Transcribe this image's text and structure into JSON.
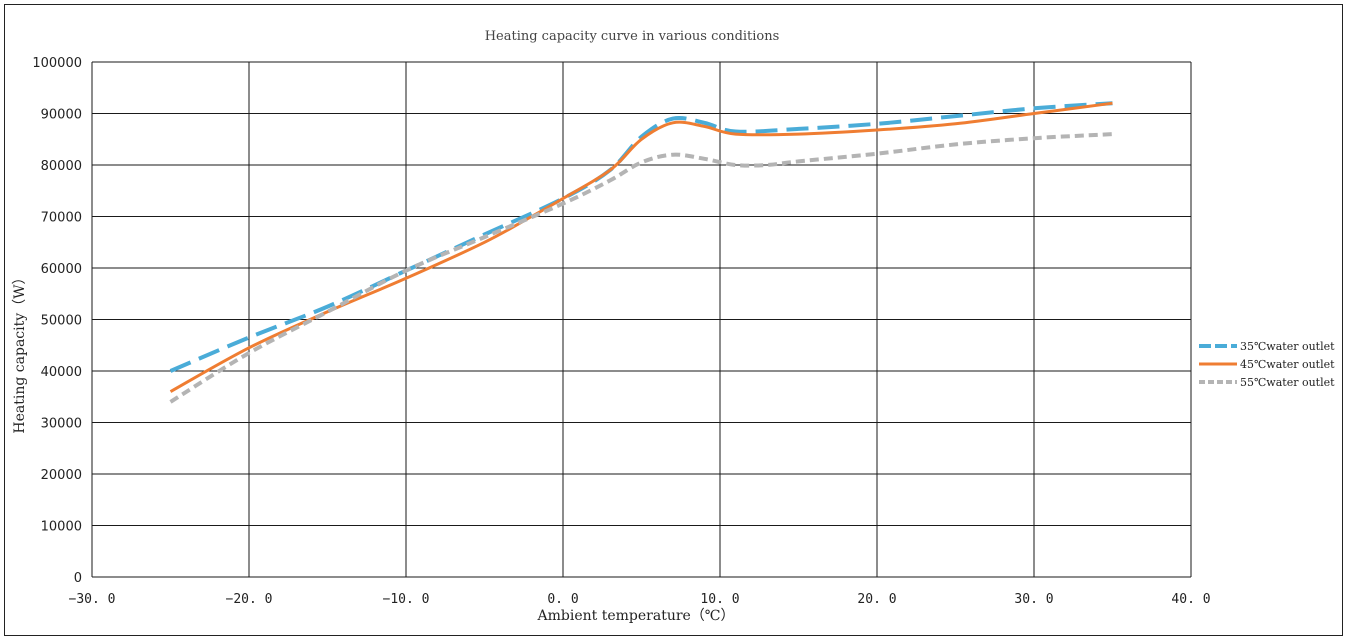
{
  "chart_data": {
    "type": "line",
    "title": "Heating capacity curve in various conditions",
    "xlabel": "Ambient temperature（℃）",
    "ylabel": "Heating capacity（W）",
    "xlim": [
      -30,
      40
    ],
    "ylim": [
      0,
      100000
    ],
    "x_ticks": [
      -30,
      -20,
      -10,
      0,
      10,
      20,
      30,
      40
    ],
    "x_tick_labels": [
      "−30. 0",
      "−20. 0",
      "−10. 0",
      "0. 0",
      "10. 0",
      "20. 0",
      "30. 0",
      "40. 0"
    ],
    "y_ticks": [
      0,
      10000,
      20000,
      30000,
      40000,
      50000,
      60000,
      70000,
      80000,
      90000,
      100000
    ],
    "y_tick_labels": [
      "0",
      "10000",
      "20000",
      "30000",
      "40000",
      "50000",
      "60000",
      "70000",
      "80000",
      "90000",
      "100000"
    ],
    "grid": true,
    "legend_position": "right",
    "series": [
      {
        "name": "35℃water outlet",
        "color": "#4aacd8",
        "dash": "dashed",
        "points": [
          [
            -25,
            40000
          ],
          [
            -20,
            46500
          ],
          [
            -15,
            52500
          ],
          [
            -10,
            59500
          ],
          [
            -5,
            66500
          ],
          [
            0,
            73500
          ],
          [
            3,
            79000
          ],
          [
            5,
            85500
          ],
          [
            7,
            89000
          ],
          [
            9,
            88200
          ],
          [
            11,
            86500
          ],
          [
            15,
            87000
          ],
          [
            20,
            88000
          ],
          [
            25,
            89500
          ],
          [
            30,
            91000
          ],
          [
            35,
            92000
          ]
        ]
      },
      {
        "name": "45℃water outlet",
        "color": "#ef7d32",
        "dash": "solid",
        "points": [
          [
            -25,
            36000
          ],
          [
            -20,
            44500
          ],
          [
            -15,
            51500
          ],
          [
            -10,
            58000
          ],
          [
            -5,
            65000
          ],
          [
            -2,
            70000
          ],
          [
            0,
            73500
          ],
          [
            3,
            79000
          ],
          [
            5,
            85000
          ],
          [
            7,
            88200
          ],
          [
            9,
            87500
          ],
          [
            11,
            86000
          ],
          [
            15,
            86000
          ],
          [
            20,
            86800
          ],
          [
            25,
            88000
          ],
          [
            30,
            90000
          ],
          [
            35,
            92000
          ]
        ]
      },
      {
        "name": "55℃water outlet",
        "color": "#b4b4b4",
        "dash": "dotted",
        "points": [
          [
            -25,
            34000
          ],
          [
            -20,
            43500
          ],
          [
            -15,
            51500
          ],
          [
            -10,
            59500
          ],
          [
            -5,
            66000
          ],
          [
            0,
            72500
          ],
          [
            3,
            77000
          ],
          [
            5,
            80500
          ],
          [
            7,
            82000
          ],
          [
            9,
            81200
          ],
          [
            11,
            80000
          ],
          [
            13,
            80000
          ],
          [
            15,
            80700
          ],
          [
            20,
            82200
          ],
          [
            25,
            84000
          ],
          [
            30,
            85200
          ],
          [
            35,
            86000
          ]
        ]
      }
    ]
  }
}
